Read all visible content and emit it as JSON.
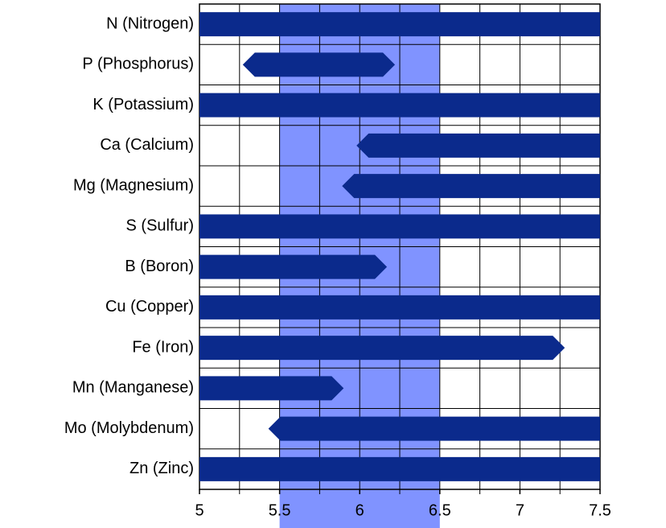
{
  "chart_data": {
    "type": "range_bar",
    "categories": [
      "N (Nitrogen)",
      "P (Phosphorus)",
      "K (Potassium)",
      "Ca (Calcium)",
      "Mg (Magnesium)",
      "S (Sulfur)",
      "B (Boron)",
      "Cu (Copper)",
      "Fe (Iron)",
      "Mn (Manganese)",
      "Mo (Molybdenum)",
      "Zn (Zinc)"
    ],
    "start": [
      5,
      5.27,
      5,
      5.98,
      5.89,
      5,
      5,
      5,
      5,
      5,
      5.43,
      5
    ],
    "end": [
      7.5,
      6.22,
      7.5,
      7.5,
      7.5,
      7.5,
      6.17,
      7.5,
      7.28,
      5.9,
      7.5,
      7.5
    ],
    "color": "#0b2a8c",
    "highlight": [
      5.5,
      6.5
    ],
    "highlight_color": "#8093ff",
    "xlim": [
      5,
      7.5
    ],
    "xticks": [
      5,
      5.5,
      6,
      6.5,
      7,
      7.5
    ],
    "x_gridlines": [
      5.25,
      5.5,
      5.75,
      6,
      6.25,
      6.5,
      6.75,
      7,
      7.25
    ],
    "grid": true
  }
}
